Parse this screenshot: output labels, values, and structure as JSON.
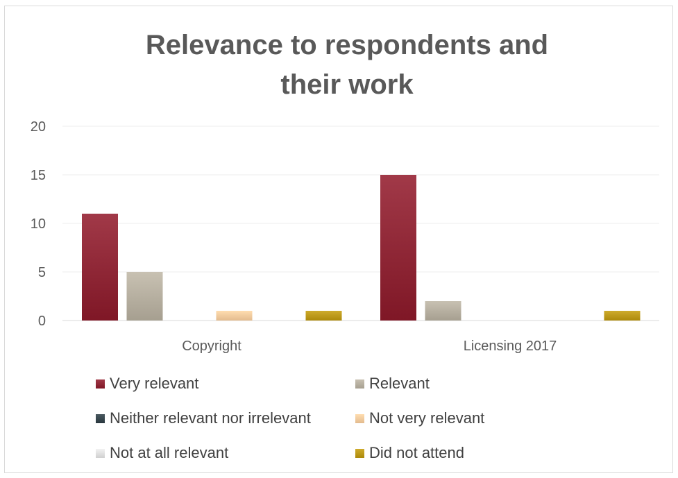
{
  "chart_data": {
    "type": "bar",
    "title_lines": [
      "Relevance to respondents and",
      "their work"
    ],
    "categories": [
      "Copyright",
      "Licensing 2017"
    ],
    "ylim": [
      0,
      20
    ],
    "yticks": [
      0,
      5,
      10,
      15,
      20
    ],
    "grid": true,
    "legend_position": "bottom",
    "series": [
      {
        "name": "Very relevant",
        "color": "#8b2332",
        "values": [
          11,
          15
        ]
      },
      {
        "name": "Relevant",
        "color": "#b2ab9c",
        "values": [
          5,
          2
        ]
      },
      {
        "name": "Neither relevant nor irrelevant",
        "color": "#34434a",
        "values": [
          0,
          0
        ]
      },
      {
        "name": "Not very relevant",
        "color": "#efc79a",
        "values": [
          1,
          0
        ]
      },
      {
        "name": "Not at all relevant",
        "color": "#dcdcdc",
        "values": [
          0,
          0
        ]
      },
      {
        "name": "Did not attend",
        "color": "#b89516",
        "values": [
          1,
          1
        ]
      }
    ]
  }
}
